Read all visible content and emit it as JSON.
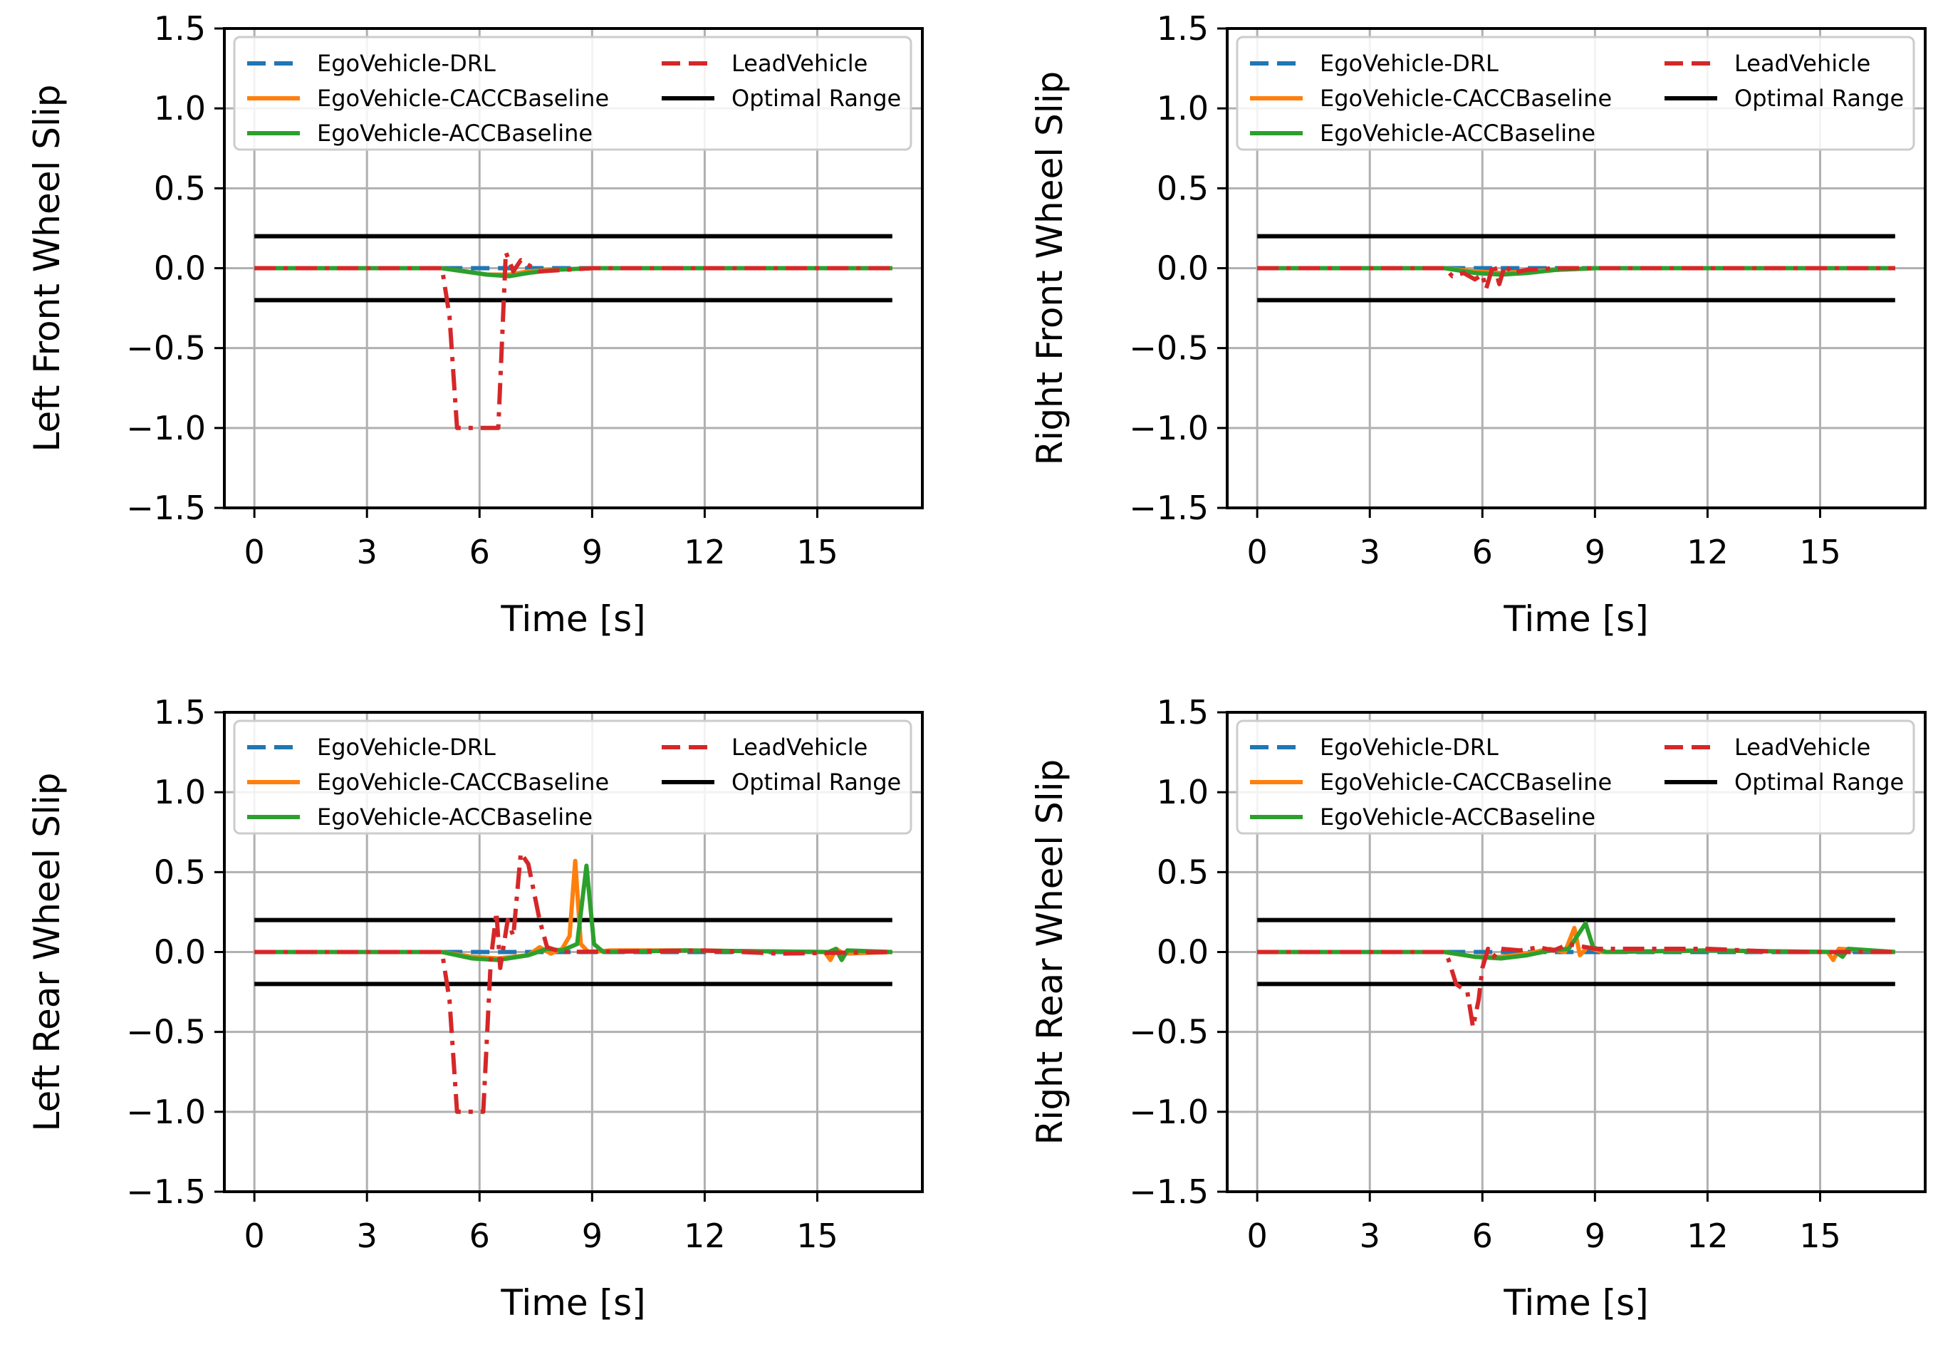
{
  "figure": {
    "note": "2x2 grid of wheel slip plots"
  },
  "legend_entries": [
    {
      "label": "EgoVehicle-DRL",
      "color": "#1f77b4",
      "dash": "dashed"
    },
    {
      "label": "LeadVehicle",
      "color": "#d62728",
      "dash": "dashed"
    },
    {
      "label": "EgoVehicle-CACCBaseline",
      "color": "#ff7f0e",
      "dash": "solid"
    },
    {
      "label": "Optimal Range",
      "color": "#000000",
      "dash": "solid"
    },
    {
      "label": "EgoVehicle-ACCBaseline",
      "color": "#2ca02c",
      "dash": "solid"
    }
  ],
  "chart_data": [
    {
      "type": "line",
      "title": "",
      "xlabel": "Time [s]",
      "ylabel": "Left Front Wheel Slip",
      "xlim": [
        -0.8,
        17.8
      ],
      "ylim": [
        -1.5,
        1.5
      ],
      "xticks": [
        "0",
        "3",
        "6",
        "9",
        "12",
        "15"
      ],
      "yticks": [
        "1.5",
        "1.0",
        "0.5",
        "0.0",
        "−0.5",
        "−1.0",
        "−1.5"
      ],
      "grid": true,
      "legend_position": "top",
      "series": [
        {
          "name": "EgoVehicle-DRL",
          "color": "#1f77b4",
          "dash": "dashed",
          "points": [
            [
              0,
              0
            ],
            [
              17,
              0
            ]
          ]
        },
        {
          "name": "EgoVehicle-CACCBaseline",
          "color": "#ff7f0e",
          "dash": "solid",
          "points": [
            [
              0,
              0
            ],
            [
              5,
              0
            ],
            [
              5.6,
              -0.02
            ],
            [
              6.2,
              -0.04
            ],
            [
              6.8,
              -0.04
            ],
            [
              7.3,
              -0.02
            ],
            [
              8,
              -0.01
            ],
            [
              9,
              0
            ],
            [
              17,
              0
            ]
          ]
        },
        {
          "name": "EgoVehicle-ACCBaseline",
          "color": "#2ca02c",
          "dash": "solid",
          "points": [
            [
              0,
              0
            ],
            [
              5,
              0
            ],
            [
              5.6,
              -0.02
            ],
            [
              6.2,
              -0.04
            ],
            [
              6.8,
              -0.05
            ],
            [
              7.3,
              -0.03
            ],
            [
              8,
              -0.01
            ],
            [
              9,
              0
            ],
            [
              17,
              0
            ]
          ]
        },
        {
          "name": "LeadVehicle",
          "color": "#d62728",
          "dash": "dashdot",
          "points": [
            [
              0,
              0
            ],
            [
              5,
              0
            ],
            [
              5.2,
              -0.3
            ],
            [
              5.4,
              -1.0
            ],
            [
              6.5,
              -1.0
            ],
            [
              6.7,
              0.1
            ],
            [
              6.9,
              -0.02
            ],
            [
              7.1,
              0.05
            ],
            [
              7.3,
              0.02
            ],
            [
              7.6,
              -0.02
            ],
            [
              9,
              0
            ],
            [
              17,
              0
            ]
          ]
        },
        {
          "name": "Optimal Range",
          "color": "#000000",
          "dash": "solid",
          "points": [
            [
              0,
              0.2
            ],
            [
              17,
              0.2
            ]
          ]
        },
        {
          "name": "Optimal Range",
          "color": "#000000",
          "dash": "solid",
          "points": [
            [
              0,
              -0.2
            ],
            [
              17,
              -0.2
            ]
          ]
        }
      ]
    },
    {
      "type": "line",
      "title": "",
      "xlabel": "Time [s]",
      "ylabel": "Right Front Wheel Slip",
      "xlim": [
        -0.8,
        17.8
      ],
      "ylim": [
        -1.5,
        1.5
      ],
      "xticks": [
        "0",
        "3",
        "6",
        "9",
        "12",
        "15"
      ],
      "yticks": [
        "1.5",
        "1.0",
        "0.5",
        "0.0",
        "−0.5",
        "−1.0",
        "−1.5"
      ],
      "grid": true,
      "legend_position": "top",
      "series": [
        {
          "name": "EgoVehicle-DRL",
          "color": "#1f77b4",
          "dash": "dashed",
          "points": [
            [
              0,
              0
            ],
            [
              17,
              0
            ]
          ]
        },
        {
          "name": "EgoVehicle-CACCBaseline",
          "color": "#ff7f0e",
          "dash": "solid",
          "points": [
            [
              0,
              0
            ],
            [
              5,
              0
            ],
            [
              5.8,
              -0.02
            ],
            [
              6.5,
              -0.03
            ],
            [
              7.2,
              -0.02
            ],
            [
              8,
              -0.01
            ],
            [
              9,
              0
            ],
            [
              17,
              0
            ]
          ]
        },
        {
          "name": "EgoVehicle-ACCBaseline",
          "color": "#2ca02c",
          "dash": "solid",
          "points": [
            [
              0,
              0
            ],
            [
              5,
              0
            ],
            [
              5.8,
              -0.03
            ],
            [
              6.5,
              -0.04
            ],
            [
              7.2,
              -0.03
            ],
            [
              8,
              -0.01
            ],
            [
              9,
              0
            ],
            [
              17,
              0
            ]
          ]
        },
        {
          "name": "LeadVehicle",
          "color": "#d62728",
          "dash": "dashdot",
          "points": [
            [
              0,
              0
            ],
            [
              5,
              0
            ],
            [
              5.2,
              -0.05
            ],
            [
              5.5,
              -0.03
            ],
            [
              5.8,
              -0.07
            ],
            [
              6.0,
              -0.04
            ],
            [
              6.1,
              -0.13
            ],
            [
              6.3,
              0.03
            ],
            [
              6.45,
              -0.1
            ],
            [
              6.6,
              0.02
            ],
            [
              6.8,
              -0.03
            ],
            [
              7.2,
              -0.01
            ],
            [
              8,
              0
            ],
            [
              17,
              0
            ]
          ]
        },
        {
          "name": "Optimal Range",
          "color": "#000000",
          "dash": "solid",
          "points": [
            [
              0,
              0.2
            ],
            [
              17,
              0.2
            ]
          ]
        },
        {
          "name": "Optimal Range",
          "color": "#000000",
          "dash": "solid",
          "points": [
            [
              0,
              -0.2
            ],
            [
              17,
              -0.2
            ]
          ]
        }
      ]
    },
    {
      "type": "line",
      "title": "",
      "xlabel": "Time [s]",
      "ylabel": "Left Rear Wheel Slip",
      "xlim": [
        -0.8,
        17.8
      ],
      "ylim": [
        -1.5,
        1.5
      ],
      "xticks": [
        "0",
        "3",
        "6",
        "9",
        "12",
        "15"
      ],
      "yticks": [
        "1.5",
        "1.0",
        "0.5",
        "0.0",
        "−0.5",
        "−1.0",
        "−1.5"
      ],
      "grid": true,
      "legend_position": "top",
      "series": [
        {
          "name": "EgoVehicle-DRL",
          "color": "#1f77b4",
          "dash": "dashed",
          "points": [
            [
              0,
              0
            ],
            [
              17,
              0
            ]
          ]
        },
        {
          "name": "EgoVehicle-CACCBaseline",
          "color": "#ff7f0e",
          "dash": "solid",
          "points": [
            [
              0,
              0
            ],
            [
              5,
              0
            ],
            [
              5.8,
              -0.03
            ],
            [
              6.5,
              -0.04
            ],
            [
              7.3,
              -0.02
            ],
            [
              7.6,
              0.03
            ],
            [
              7.9,
              -0.01
            ],
            [
              8.2,
              0.02
            ],
            [
              8.4,
              0.1
            ],
            [
              8.55,
              0.57
            ],
            [
              8.7,
              0.05
            ],
            [
              8.9,
              0
            ],
            [
              9.5,
              0.01
            ],
            [
              11.5,
              0.01
            ],
            [
              15.2,
              0
            ],
            [
              15.35,
              -0.05
            ],
            [
              15.5,
              0.02
            ],
            [
              15.7,
              -0.01
            ],
            [
              17,
              0
            ]
          ]
        },
        {
          "name": "EgoVehicle-ACCBaseline",
          "color": "#2ca02c",
          "dash": "solid",
          "points": [
            [
              0,
              0
            ],
            [
              5,
              0
            ],
            [
              5.8,
              -0.04
            ],
            [
              6.5,
              -0.05
            ],
            [
              7.3,
              -0.02
            ],
            [
              7.8,
              0.02
            ],
            [
              8.2,
              0.01
            ],
            [
              8.6,
              0.05
            ],
            [
              8.85,
              0.54
            ],
            [
              9.05,
              0.05
            ],
            [
              9.3,
              0
            ],
            [
              11.5,
              0.01
            ],
            [
              15.3,
              0
            ],
            [
              15.5,
              0.02
            ],
            [
              15.65,
              -0.05
            ],
            [
              15.8,
              0.01
            ],
            [
              17,
              0
            ]
          ]
        },
        {
          "name": "LeadVehicle",
          "color": "#d62728",
          "dash": "dashdot",
          "points": [
            [
              0,
              0
            ],
            [
              5,
              0
            ],
            [
              5.2,
              -0.3
            ],
            [
              5.4,
              -1.0
            ],
            [
              6.1,
              -1.0
            ],
            [
              6.3,
              -0.05
            ],
            [
              6.45,
              0.25
            ],
            [
              6.55,
              -0.1
            ],
            [
              6.75,
              0.2
            ],
            [
              6.9,
              0.1
            ],
            [
              7.1,
              0.62
            ],
            [
              7.3,
              0.55
            ],
            [
              7.6,
              0.2
            ],
            [
              7.8,
              0.03
            ],
            [
              8.2,
              0
            ],
            [
              12,
              0.01
            ],
            [
              14,
              -0.01
            ],
            [
              17,
              0
            ]
          ]
        },
        {
          "name": "Optimal Range",
          "color": "#000000",
          "dash": "solid",
          "points": [
            [
              0,
              0.2
            ],
            [
              17,
              0.2
            ]
          ]
        },
        {
          "name": "Optimal Range",
          "color": "#000000",
          "dash": "solid",
          "points": [
            [
              0,
              -0.2
            ],
            [
              17,
              -0.2
            ]
          ]
        }
      ]
    },
    {
      "type": "line",
      "title": "",
      "xlabel": "Time [s]",
      "ylabel": "Right Rear Wheel Slip",
      "xlim": [
        -0.8,
        17.8
      ],
      "ylim": [
        -1.5,
        1.5
      ],
      "xticks": [
        "0",
        "3",
        "6",
        "9",
        "12",
        "15"
      ],
      "yticks": [
        "1.5",
        "1.0",
        "0.5",
        "0.0",
        "−0.5",
        "−1.0",
        "−1.5"
      ],
      "grid": true,
      "legend_position": "top",
      "series": [
        {
          "name": "EgoVehicle-DRL",
          "color": "#1f77b4",
          "dash": "dashed",
          "points": [
            [
              0,
              0
            ],
            [
              17,
              0
            ]
          ]
        },
        {
          "name": "EgoVehicle-CACCBaseline",
          "color": "#ff7f0e",
          "dash": "solid",
          "points": [
            [
              0,
              0
            ],
            [
              5,
              0
            ],
            [
              5.8,
              -0.03
            ],
            [
              6.5,
              -0.03
            ],
            [
              7.2,
              -0.01
            ],
            [
              7.8,
              0.02
            ],
            [
              8.2,
              0
            ],
            [
              8.45,
              0.15
            ],
            [
              8.6,
              -0.02
            ],
            [
              8.8,
              0.03
            ],
            [
              9.2,
              0
            ],
            [
              12,
              0.01
            ],
            [
              15.2,
              0
            ],
            [
              15.35,
              -0.05
            ],
            [
              15.5,
              0.02
            ],
            [
              17,
              0
            ]
          ]
        },
        {
          "name": "EgoVehicle-ACCBaseline",
          "color": "#2ca02c",
          "dash": "solid",
          "points": [
            [
              0,
              0
            ],
            [
              5,
              0
            ],
            [
              5.8,
              -0.03
            ],
            [
              6.5,
              -0.04
            ],
            [
              7.2,
              -0.02
            ],
            [
              7.8,
              0.01
            ],
            [
              8.3,
              0.02
            ],
            [
              8.75,
              0.18
            ],
            [
              8.95,
              0.03
            ],
            [
              9.3,
              0
            ],
            [
              12,
              0.01
            ],
            [
              15.4,
              0
            ],
            [
              15.6,
              -0.03
            ],
            [
              15.75,
              0.02
            ],
            [
              17,
              0
            ]
          ]
        },
        {
          "name": "LeadVehicle",
          "color": "#d62728",
          "dash": "dashdot",
          "points": [
            [
              0,
              0
            ],
            [
              5,
              0
            ],
            [
              5.1,
              -0.05
            ],
            [
              5.3,
              -0.2
            ],
            [
              5.6,
              -0.25
            ],
            [
              5.75,
              -0.47
            ],
            [
              5.9,
              -0.3
            ],
            [
              6.0,
              -0.1
            ],
            [
              6.15,
              0.02
            ],
            [
              6.3,
              -0.03
            ],
            [
              6.5,
              0.02
            ],
            [
              7,
              0.01
            ],
            [
              7.5,
              0.03
            ],
            [
              7.9,
              0.01
            ],
            [
              8.3,
              0.05
            ],
            [
              9,
              0.02
            ],
            [
              12,
              0.02
            ],
            [
              14,
              0
            ],
            [
              17,
              0
            ]
          ]
        },
        {
          "name": "Optimal Range",
          "color": "#000000",
          "dash": "solid",
          "points": [
            [
              0,
              0.2
            ],
            [
              17,
              0.2
            ]
          ]
        },
        {
          "name": "Optimal Range",
          "color": "#000000",
          "dash": "solid",
          "points": [
            [
              0,
              -0.2
            ],
            [
              17,
              -0.2
            ]
          ]
        }
      ]
    }
  ]
}
